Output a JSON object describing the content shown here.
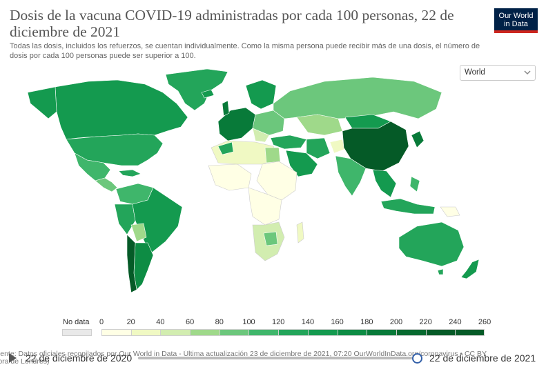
{
  "header": {
    "title": "Dosis de la vacuna COVID-19 administradas por cada 100 personas, 22 de diciembre de 2021",
    "subtitle": "Todas las dosis, incluidos los refuerzos, se cuentan individualmente. Como la misma persona puede recibir más de una dosis, el número de dosis por cada 100 personas puede ser superior a 100."
  },
  "logo": {
    "line1": "Our World",
    "line2": "in Data",
    "bg_color": "#002147",
    "accent_color": "#ce261e"
  },
  "region_select": {
    "value": "World",
    "icon": "chevron-down-icon"
  },
  "map": {
    "colors": {
      "no_data": "#e9e9e9",
      "scale": [
        "#ffffe5",
        "#f0f9c3",
        "#d2edb0",
        "#9fd98a",
        "#6cc77c",
        "#3fb66b",
        "#23a55a",
        "#149a4f",
        "#0d8c44",
        "#087a39",
        "#06692f",
        "#055a27"
      ]
    }
  },
  "legend": {
    "no_data_label": "No data",
    "ticks": [
      "0",
      "20",
      "40",
      "60",
      "80",
      "100",
      "120",
      "140",
      "160",
      "180",
      "200",
      "220",
      "240",
      "260"
    ]
  },
  "source": {
    "line1": "Fuente: Datos oficiales recopilados por Our World in Data - Última actualización 23 de diciembre de 2021, 07:20    OurWorldInData.org/coronavirus • CC BY",
    "line2": "(hora de Londres)"
  },
  "timeline": {
    "start_label": "22 de diciembre de 2020",
    "end_label": "22 de diciembre de 2021",
    "position": 1.0
  }
}
